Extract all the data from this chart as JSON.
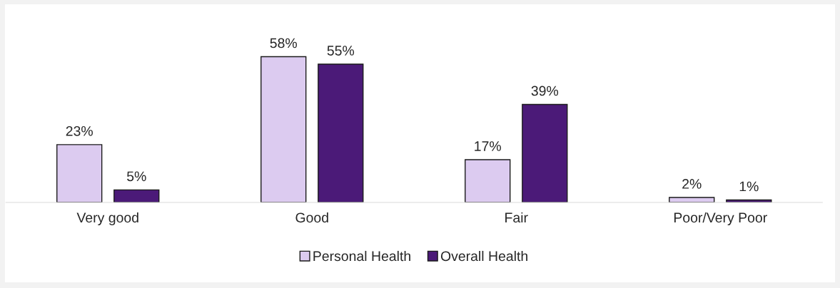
{
  "chart_data": {
    "type": "bar",
    "categories": [
      "Very good",
      "Good",
      "Fair",
      "Poor/Very Poor"
    ],
    "series": [
      {
        "name": "Personal Health",
        "color": "#dccbf0",
        "values": [
          23,
          58,
          17,
          2
        ],
        "value_labels": [
          "23%",
          "58%",
          "17%",
          "2%"
        ]
      },
      {
        "name": "Overall Health",
        "color": "#4b1a78",
        "values": [
          5,
          55,
          39,
          1
        ],
        "value_labels": [
          "5%",
          "55%",
          "39%",
          "1%"
        ]
      }
    ],
    "legend": "bottom",
    "grid": false
  }
}
